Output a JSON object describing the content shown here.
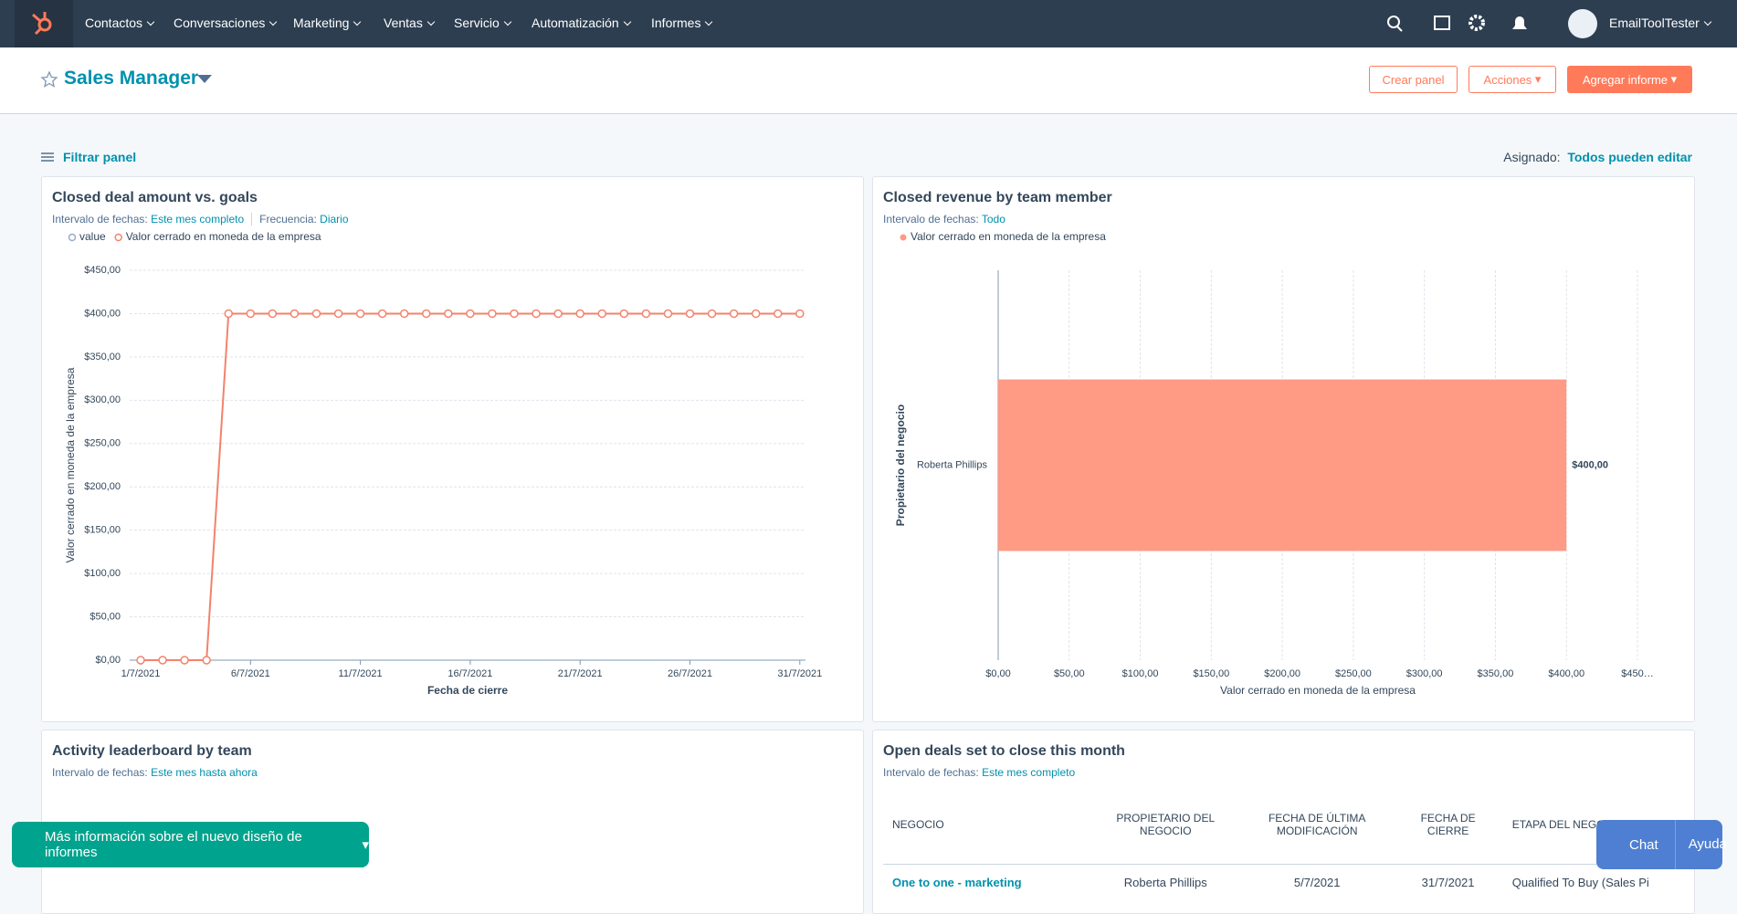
{
  "nav": {
    "items": [
      "Contactos",
      "Conversaciones",
      "Marketing",
      "Ventas",
      "Servicio",
      "Automatización",
      "Informes"
    ],
    "user": "EmailToolTester"
  },
  "header": {
    "title": "Sales Manager",
    "buttons": [
      "Crear panel",
      "Acciones",
      "Agregar informe"
    ]
  },
  "toolbar": {
    "filter": "Filtrar panel",
    "assigned_label": "Asignado:",
    "assigned_value": "Todos pueden editar"
  },
  "chart_data": [
    {
      "type": "line",
      "title": "Closed deal amount vs. goals",
      "filters": [
        {
          "label": "Intervalo de fechas:",
          "value": "Este mes completo"
        },
        {
          "label": "Frecuencia:",
          "value": "Diario"
        }
      ],
      "x_label": "Fecha de cierre",
      "y_label": "Valor cerrado en moneda de la empresa",
      "categories": [
        "1/7/2021",
        null,
        null,
        null,
        null,
        "6/7/2021",
        null,
        null,
        null,
        null,
        "11/7/2021",
        null,
        null,
        null,
        null,
        "16/7/2021",
        null,
        null,
        null,
        null,
        "21/7/2021",
        null,
        null,
        null,
        null,
        "26/7/2021",
        null,
        null,
        null,
        null,
        "31/7/2021"
      ],
      "series": [
        {
          "name": "value",
          "color": "#99acc2",
          "values": [
            null,
            null,
            null,
            null,
            null,
            null,
            null,
            null,
            null,
            null,
            null,
            null,
            null,
            null,
            null,
            null,
            null,
            null,
            null,
            null,
            null,
            null,
            null,
            null,
            null,
            null,
            null,
            null,
            null,
            null,
            null
          ]
        },
        {
          "name": "Valor cerrado en moneda de la empresa",
          "color": "#f2836b",
          "values": [
            0,
            0,
            0,
            0,
            400,
            400,
            400,
            400,
            400,
            400,
            400,
            400,
            400,
            400,
            400,
            400,
            400,
            400,
            400,
            400,
            400,
            400,
            400,
            400,
            400,
            400,
            400,
            400,
            400,
            400,
            400
          ]
        }
      ],
      "ylim": [
        0,
        450
      ],
      "yticks": [
        {
          "value": 0,
          "label": "$0,00"
        },
        {
          "value": 50,
          "label": "$50,00"
        },
        {
          "value": 100,
          "label": "$100,00"
        },
        {
          "value": 150,
          "label": "$150,00"
        },
        {
          "value": 200,
          "label": "$200,00"
        },
        {
          "value": 250,
          "label": "$250,00"
        },
        {
          "value": 300,
          "label": "$300,00"
        },
        {
          "value": 350,
          "label": "$350,00"
        },
        {
          "value": 400,
          "label": "$400,00"
        },
        {
          "value": 450,
          "label": "$450,00"
        }
      ],
      "grid": true
    },
    {
      "type": "hbar",
      "title": "Closed revenue by team member",
      "filters": [
        {
          "label": "Intervalo de fechas:",
          "value": "Todo"
        }
      ],
      "x_label": "Valor cerrado en moneda de la empresa",
      "y_label": "Propietario del negocio",
      "categories": [
        "Roberta Phillips"
      ],
      "series": [
        {
          "name": "Valor cerrado en moneda de la empresa",
          "color": "#ff9a85",
          "values": [
            400
          ],
          "value_labels": [
            "$400,00"
          ]
        }
      ],
      "xlim": [
        0,
        450
      ],
      "xticks": [
        {
          "value": 0,
          "label": "$0,00"
        },
        {
          "value": 50,
          "label": "$50,00"
        },
        {
          "value": 100,
          "label": "$100,00"
        },
        {
          "value": 150,
          "label": "$150,00"
        },
        {
          "value": 200,
          "label": "$200,00"
        },
        {
          "value": 250,
          "label": "$250,00"
        },
        {
          "value": 300,
          "label": "$300,00"
        },
        {
          "value": 350,
          "label": "$350,00"
        },
        {
          "value": 400,
          "label": "$400,00"
        },
        {
          "value": 450,
          "label": "$450…"
        }
      ],
      "grid": true
    }
  ],
  "cards": [
    {
      "title": "Activity leaderboard by team",
      "filter_label": "Intervalo de fechas:",
      "filter_value": "Este mes hasta ahora"
    },
    {
      "title": "Open deals set to close this month",
      "filter_label": "Intervalo de fechas:",
      "filter_value": "Este mes completo"
    }
  ],
  "table": {
    "columns": [
      "NEGOCIO",
      "PROPIETARIO DEL NEGOCIO",
      "FECHA DE ÚLTIMA MODIFICACIÓN",
      "FECHA DE CIERRE",
      "ETAPA DEL NEGOCIO"
    ],
    "rows": [
      [
        "One to one - marketing",
        "Roberta Phillips",
        "5/7/2021",
        "31/7/2021",
        "Qualified To Buy (Sales Pi"
      ]
    ]
  },
  "banner": "Más información sobre el nuevo diseño de informes",
  "help": {
    "chat": "Chat",
    "help": "Ayuda"
  }
}
